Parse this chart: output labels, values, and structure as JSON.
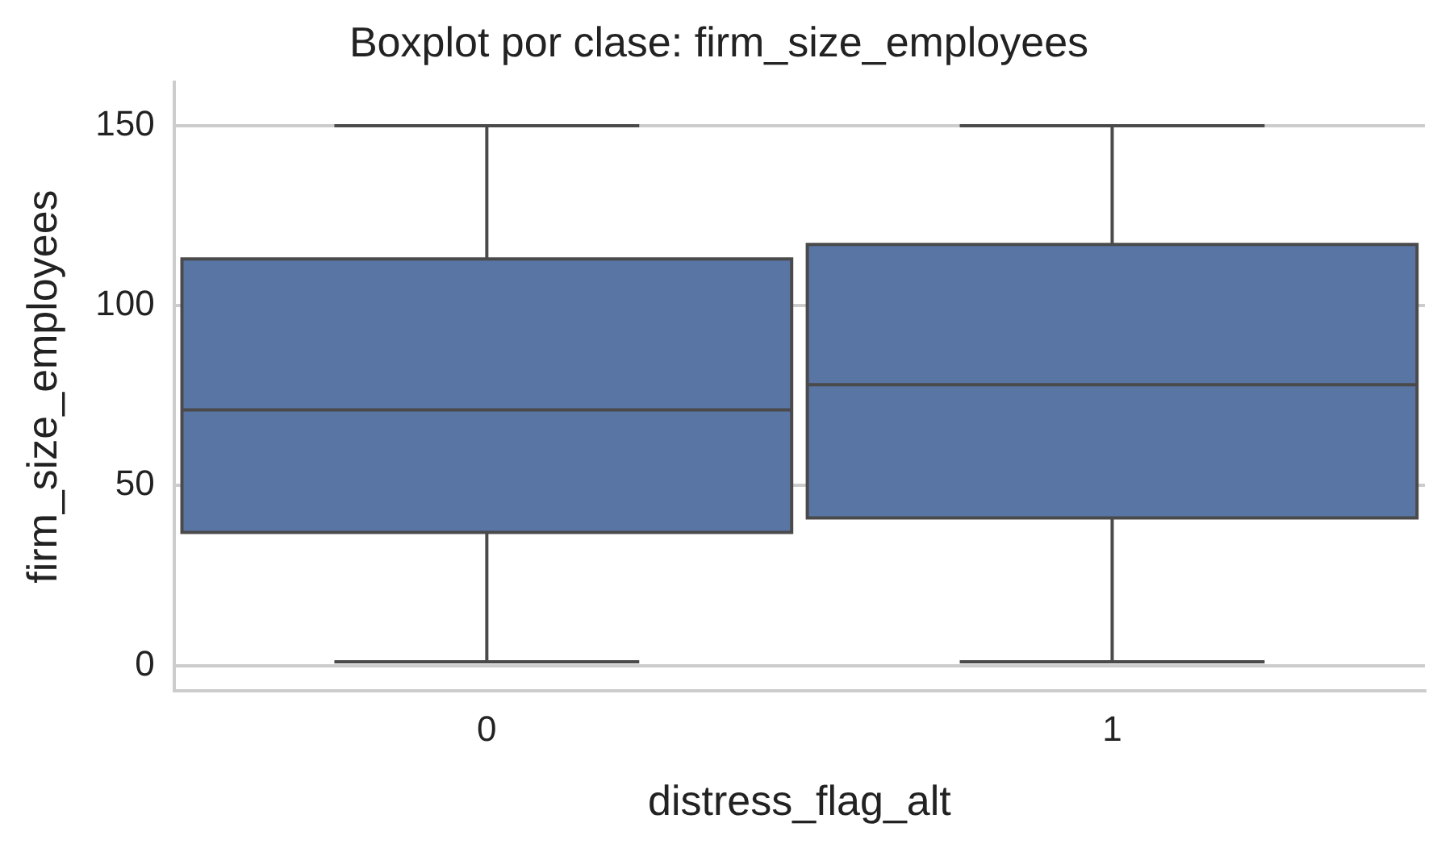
{
  "chart_data": {
    "type": "box",
    "title": "Boxplot por clase: firm_size_employees",
    "xlabel": "distress_flag_alt",
    "ylabel": "firm_size_employees",
    "categories": [
      "0",
      "1"
    ],
    "boxes": [
      {
        "low": 1,
        "q1": 37,
        "median": 71,
        "q3": 113,
        "high": 150
      },
      {
        "low": 1,
        "q1": 41,
        "median": 78,
        "q3": 117,
        "high": 150
      }
    ],
    "color": "#5875a4",
    "ylim": [
      -7,
      162
    ],
    "yticks": [
      0,
      50,
      100,
      150
    ],
    "grid": "y",
    "legend": false
  }
}
